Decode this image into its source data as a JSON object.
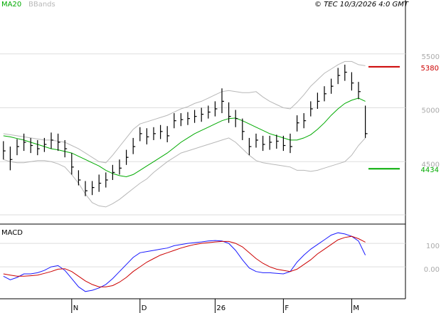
{
  "chart_data": [
    {
      "type": "ohlc",
      "credit": "© TEC 10/3/2026 4:0 GMT",
      "categories": [
        null,
        null,
        null,
        null,
        null,
        null,
        null,
        null,
        null,
        null,
        "N",
        null,
        null,
        null,
        null,
        null,
        null,
        null,
        null,
        null,
        "D",
        null,
        null,
        null,
        null,
        null,
        null,
        null,
        null,
        null,
        null,
        "26",
        null,
        null,
        null,
        null,
        null,
        null,
        null,
        null,
        null,
        "F",
        null,
        null,
        null,
        null,
        null,
        null,
        null,
        null,
        null,
        "M",
        null,
        null
      ],
      "high": [
        4690,
        4640,
        4710,
        4760,
        4720,
        4700,
        4720,
        4770,
        4760,
        4700,
        4580,
        4420,
        4320,
        4320,
        4380,
        4400,
        4470,
        4520,
        4610,
        4720,
        4820,
        4810,
        4820,
        4840,
        4830,
        4950,
        4950,
        4960,
        4980,
        5000,
        5020,
        5060,
        5180,
        5050,
        4980,
        4900,
        4720,
        4760,
        4740,
        4740,
        4750,
        4740,
        4760,
        4930,
        4950,
        5060,
        5140,
        5200,
        5270,
        5370,
        5400,
        5330,
        5240,
        5020
      ],
      "low": [
        4520,
        4420,
        4560,
        4600,
        4580,
        4560,
        4590,
        4620,
        4600,
        4540,
        4380,
        4280,
        4180,
        4190,
        4220,
        4260,
        4330,
        4380,
        4470,
        4570,
        4690,
        4660,
        4700,
        4710,
        4680,
        4810,
        4830,
        4840,
        4860,
        4870,
        4900,
        4920,
        4950,
        4860,
        4820,
        4700,
        4560,
        4630,
        4600,
        4610,
        4620,
        4600,
        4580,
        4780,
        4810,
        4920,
        4990,
        5060,
        5130,
        5220,
        5250,
        5160,
        5080,
        4720
      ],
      "close": [
        4600,
        4520,
        4640,
        4680,
        4650,
        4620,
        4660,
        4700,
        4680,
        4620,
        4450,
        4330,
        4230,
        4260,
        4300,
        4330,
        4400,
        4440,
        4540,
        4640,
        4760,
        4730,
        4760,
        4780,
        4740,
        4880,
        4890,
        4900,
        4920,
        4940,
        4960,
        4990,
        5060,
        4920,
        4900,
        4780,
        4640,
        4700,
        4660,
        4680,
        4690,
        4650,
        4640,
        4860,
        4880,
        4990,
        5060,
        5130,
        5200,
        5300,
        5330,
        5230,
        5150,
        4760
      ],
      "color": "#000000",
      "series": [
        {
          "name": "MA20",
          "color": "#00aa00",
          "values": [
            4740,
            4730,
            4715,
            4700,
            4680,
            4660,
            4640,
            4620,
            4610,
            4595,
            4580,
            4550,
            4520,
            4490,
            4460,
            4420,
            4390,
            4370,
            4360,
            4380,
            4420,
            4460,
            4500,
            4540,
            4580,
            4630,
            4680,
            4720,
            4760,
            4790,
            4820,
            4850,
            4880,
            4900,
            4905,
            4880,
            4850,
            4820,
            4790,
            4760,
            4740,
            4720,
            4700,
            4700,
            4720,
            4750,
            4800,
            4860,
            4930,
            4990,
            5040,
            5070,
            5090,
            5060
          ]
        }
      ],
      "bands": {
        "name": "BBands",
        "color": "#b8b8b8",
        "upper": [
          4760,
          4750,
          4740,
          4730,
          4720,
          4710,
          4700,
          4700,
          4690,
          4680,
          4650,
          4620,
          4580,
          4540,
          4500,
          4490,
          4560,
          4640,
          4720,
          4800,
          4850,
          4870,
          4890,
          4910,
          4930,
          4960,
          4990,
          5010,
          5040,
          5060,
          5090,
          5120,
          5150,
          5160,
          5150,
          5140,
          5140,
          5150,
          5100,
          5060,
          5030,
          5000,
          4990,
          5050,
          5120,
          5200,
          5260,
          5320,
          5360,
          5400,
          5430,
          5430,
          5400,
          5390
        ],
        "lower": [
          4520,
          4500,
          4490,
          4490,
          4500,
          4510,
          4510,
          4500,
          4480,
          4450,
          4380,
          4300,
          4200,
          4120,
          4090,
          4080,
          4110,
          4150,
          4200,
          4250,
          4300,
          4340,
          4400,
          4450,
          4500,
          4540,
          4580,
          4600,
          4620,
          4640,
          4660,
          4680,
          4700,
          4720,
          4680,
          4620,
          4560,
          4510,
          4490,
          4480,
          4470,
          4460,
          4450,
          4420,
          4420,
          4410,
          4420,
          4440,
          4460,
          4480,
          4500,
          4560,
          4650,
          4720
        ]
      },
      "levels": [
        {
          "value": 5380,
          "color": "#cc0000"
        },
        {
          "value": 4434,
          "color": "#00aa00"
        }
      ],
      "ylim": [
        4000,
        6000
      ],
      "yticks": [
        4500,
        5000,
        5500
      ],
      "grid": true
    },
    {
      "type": "line",
      "title": "MACD",
      "series": [
        {
          "color": "#1a1aff",
          "values": [
            -40,
            -55,
            -45,
            -30,
            -30,
            -25,
            -15,
            0,
            5,
            -15,
            -50,
            -85,
            -105,
            -100,
            -90,
            -75,
            -50,
            -20,
            10,
            40,
            60,
            65,
            70,
            75,
            80,
            90,
            95,
            100,
            103,
            106,
            110,
            112,
            110,
            100,
            70,
            30,
            -5,
            -20,
            -25,
            -25,
            -28,
            -30,
            -20,
            20,
            50,
            75,
            95,
            115,
            135,
            145,
            140,
            130,
            110,
            50
          ]
        },
        {
          "color": "#cc0000",
          "values": [
            -30,
            -35,
            -40,
            -40,
            -38,
            -35,
            -28,
            -20,
            -10,
            -8,
            -20,
            -40,
            -60,
            -75,
            -85,
            -85,
            -80,
            -65,
            -45,
            -20,
            0,
            20,
            35,
            50,
            60,
            70,
            80,
            88,
            95,
            100,
            103,
            106,
            108,
            108,
            100,
            85,
            60,
            35,
            15,
            0,
            -10,
            -15,
            -20,
            -10,
            10,
            30,
            55,
            75,
            95,
            115,
            125,
            130,
            120,
            105
          ]
        }
      ],
      "ylim": [
        -136,
        179
      ],
      "yticks": [
        {
          "value": 0,
          "label": "0.00"
        },
        100
      ],
      "grid": true
    }
  ]
}
